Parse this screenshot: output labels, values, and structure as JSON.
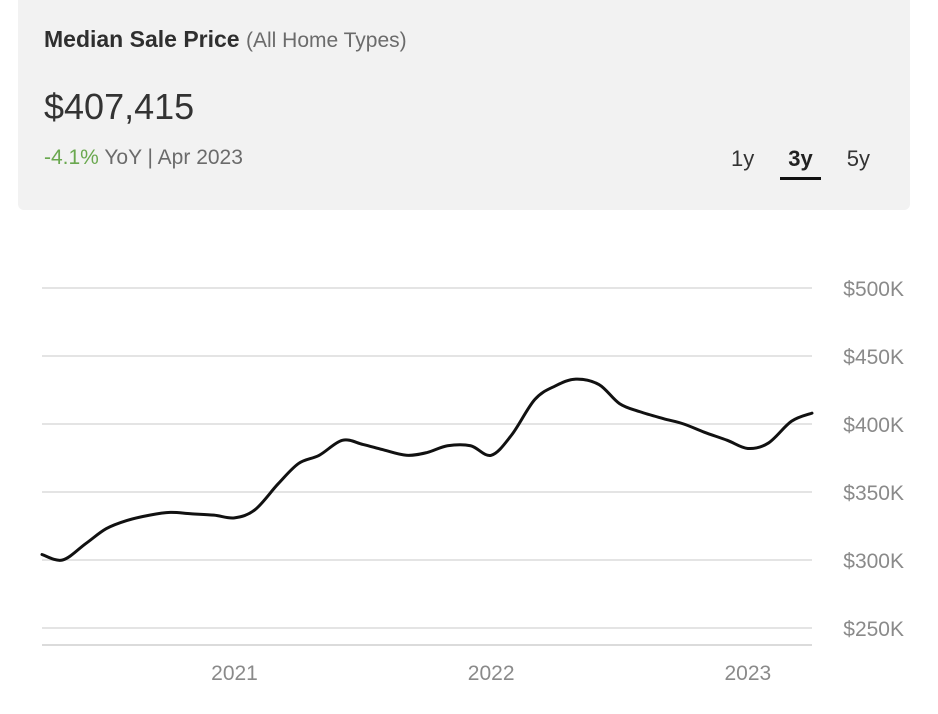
{
  "header": {
    "title": "Median Sale Price",
    "subtitle": "(All Home Types)",
    "price": "$407,415",
    "change": "-4.1%",
    "change_suffix": "YoY | Apr 2023",
    "ranges": [
      "1y",
      "3y",
      "5y"
    ],
    "active_range": "3y",
    "positive_color": "#6aa84f"
  },
  "chart_data": {
    "type": "line",
    "title": "",
    "xlabel": "",
    "ylabel": "",
    "y_ticks": [
      "$250K",
      "$300K",
      "$350K",
      "$400K",
      "$450K",
      "$500K"
    ],
    "y_tick_values": [
      250000,
      300000,
      350000,
      400000,
      450000,
      500000
    ],
    "ylim": [
      250000,
      500000
    ],
    "x_ticks": [
      "2021",
      "2022",
      "2023"
    ],
    "x_tick_values": [
      2021.0,
      2022.0,
      2023.0
    ],
    "xlim": [
      2020.25,
      2023.25
    ],
    "grid": true,
    "line_color": "#111111",
    "series": [
      {
        "values": [
          [
            2020.25,
            304000
          ],
          [
            2020.33,
            300000
          ],
          [
            2020.42,
            312000
          ],
          [
            2020.5,
            323000
          ],
          [
            2020.58,
            329000
          ],
          [
            2020.67,
            333000
          ],
          [
            2020.75,
            335000
          ],
          [
            2020.83,
            334000
          ],
          [
            2020.92,
            333000
          ],
          [
            2021.0,
            331000
          ],
          [
            2021.08,
            337000
          ],
          [
            2021.17,
            356000
          ],
          [
            2021.25,
            371000
          ],
          [
            2021.33,
            377000
          ],
          [
            2021.42,
            388000
          ],
          [
            2021.5,
            385000
          ],
          [
            2021.58,
            381000
          ],
          [
            2021.67,
            377000
          ],
          [
            2021.75,
            379000
          ],
          [
            2021.83,
            384000
          ],
          [
            2021.92,
            384000
          ],
          [
            2022.0,
            377000
          ],
          [
            2022.08,
            392000
          ],
          [
            2022.17,
            418000
          ],
          [
            2022.25,
            428000
          ],
          [
            2022.33,
            433000
          ],
          [
            2022.42,
            429000
          ],
          [
            2022.5,
            415000
          ],
          [
            2022.58,
            409000
          ],
          [
            2022.67,
            404000
          ],
          [
            2022.75,
            400000
          ],
          [
            2022.83,
            394000
          ],
          [
            2022.92,
            388000
          ],
          [
            2023.0,
            382000
          ],
          [
            2023.08,
            386000
          ],
          [
            2023.17,
            402000
          ],
          [
            2023.25,
            408000
          ]
        ]
      }
    ]
  }
}
